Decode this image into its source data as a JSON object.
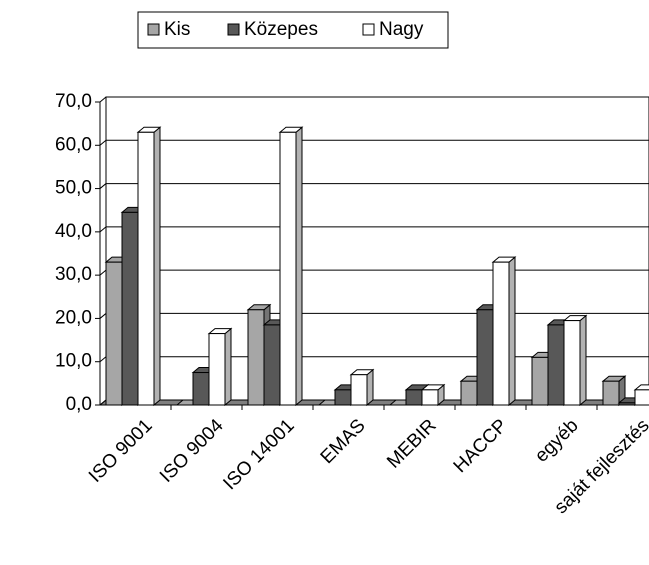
{
  "chart_data": {
    "type": "bar3d",
    "categories": [
      "ISO 9001",
      "ISO 9004",
      "ISO 14001",
      "EMAS",
      "MEBIR",
      "HACCP",
      "egyéb",
      "saját fejlesztés"
    ],
    "series": [
      {
        "name": "Kis",
        "color": "#a6a6a6",
        "values": [
          33,
          0,
          22,
          0,
          0,
          5.5,
          11,
          5.5
        ]
      },
      {
        "name": "Közepes",
        "color": "#585858",
        "values": [
          44.5,
          7.5,
          18.5,
          3.5,
          3.5,
          22,
          18.5,
          0.5
        ]
      },
      {
        "name": "Nagy",
        "color": "#ffffff",
        "values": [
          63,
          16.5,
          63,
          7,
          3.5,
          33,
          19.5,
          3.5
        ]
      }
    ],
    "ylim": [
      0,
      70
    ],
    "yticks": [
      {
        "value": 0,
        "label": "0,0"
      },
      {
        "value": 10,
        "label": "10,0"
      },
      {
        "value": 20,
        "label": "20,0"
      },
      {
        "value": 30,
        "label": "30,0"
      },
      {
        "value": 40,
        "label": "40,0"
      },
      {
        "value": 50,
        "label": "50,0"
      },
      {
        "value": 60,
        "label": "60,0"
      },
      {
        "value": 70,
        "label": "70,0"
      }
    ],
    "grid": true,
    "legend": "top"
  }
}
